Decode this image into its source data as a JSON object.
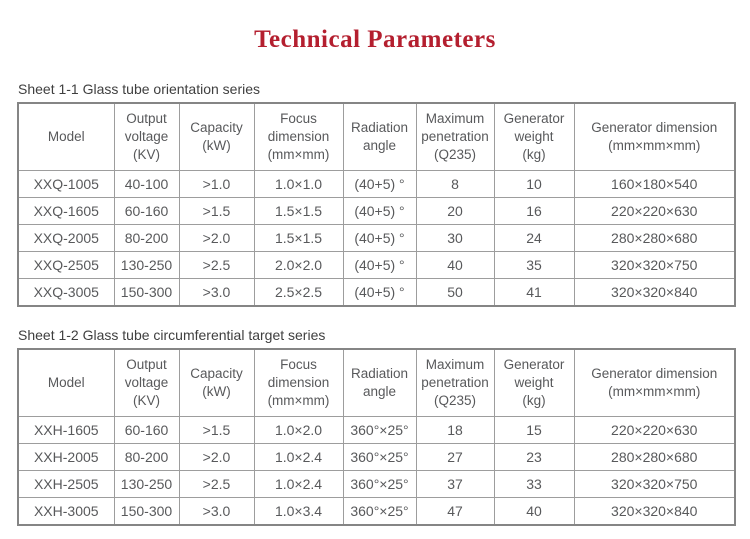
{
  "page": {
    "title": "Technical Parameters",
    "title_color": "#b41f2f"
  },
  "tables": [
    {
      "caption": "Sheet 1-1 Glass tube orientation series",
      "header": [
        [
          "Model"
        ],
        [
          "Output",
          "voltage",
          "(KV)"
        ],
        [
          "Capacity",
          "(kW)"
        ],
        [
          "Focus",
          "dimension",
          "(mm×mm)"
        ],
        [
          "Radiation",
          "angle"
        ],
        [
          "Maximum",
          "penetration",
          "(Q235)"
        ],
        [
          "Generator",
          "weight",
          "(kg)"
        ],
        [
          "Generator dimension",
          "(mm×mm×mm)"
        ]
      ],
      "rows": [
        [
          "XXQ-1005",
          "40-100",
          ">1.0",
          "1.0×1.0",
          "(40+5) °",
          "8",
          "10",
          "160×180×540"
        ],
        [
          "XXQ-1605",
          "60-160",
          ">1.5",
          "1.5×1.5",
          "(40+5) °",
          "20",
          "16",
          "220×220×630"
        ],
        [
          "XXQ-2005",
          "80-200",
          ">2.0",
          "1.5×1.5",
          "(40+5) °",
          "30",
          "24",
          "280×280×680"
        ],
        [
          "XXQ-2505",
          "130-250",
          ">2.5",
          "2.0×2.0",
          "(40+5) °",
          "40",
          "35",
          "320×320×750"
        ],
        [
          "XXQ-3005",
          "150-300",
          ">3.0",
          "2.5×2.5",
          "(40+5) °",
          "50",
          "41",
          "320×320×840"
        ]
      ]
    },
    {
      "caption": "Sheet 1-2 Glass tube circumferential target series",
      "header": [
        [
          "Model"
        ],
        [
          "Output",
          "voltage",
          "(KV)"
        ],
        [
          "Capacity",
          "(kW)"
        ],
        [
          "Focus",
          "dimension",
          "(mm×mm)"
        ],
        [
          "Radiation",
          "angle"
        ],
        [
          "Maximum",
          "penetration",
          "(Q235)"
        ],
        [
          "Generator",
          "weight",
          "(kg)"
        ],
        [
          "Generator dimension",
          "(mm×mm×mm)"
        ]
      ],
      "rows": [
        [
          "XXH-1605",
          "60-160",
          ">1.5",
          "1.0×2.0",
          "360°×25°",
          "18",
          "15",
          "220×220×630"
        ],
        [
          "XXH-2005",
          "80-200",
          ">2.0",
          "1.0×2.4",
          "360°×25°",
          "27",
          "23",
          "280×280×680"
        ],
        [
          "XXH-2505",
          "130-250",
          ">2.5",
          "1.0×2.4",
          "360°×25°",
          "37",
          "33",
          "320×320×750"
        ],
        [
          "XXH-3005",
          "150-300",
          ">3.0",
          "1.0×3.4",
          "360°×25°",
          "47",
          "40",
          "320×320×840"
        ]
      ]
    }
  ]
}
